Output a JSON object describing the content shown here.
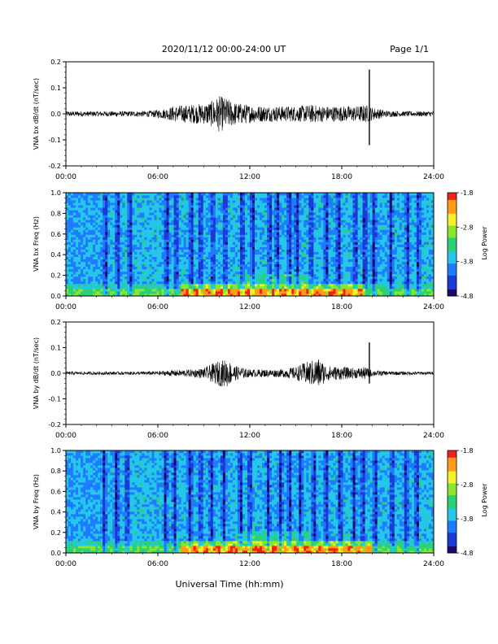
{
  "header": {
    "date_range": "2020/11/12  00:00-24:00 UT",
    "page": "Page 1/1"
  },
  "xlabel": "Universal Time (hh:mm)",
  "x_ticks": [
    "00:00",
    "06:00",
    "12:00",
    "18:00",
    "24:00"
  ],
  "colors": {
    "trace": "#000000",
    "colormap": [
      "#000000",
      "#1b0a6e",
      "#1c3ad6",
      "#1f7bff",
      "#24c7e8",
      "#2ad07a",
      "#8ae62c",
      "#f4f02a",
      "#ff9a1a",
      "#f0201a"
    ]
  },
  "chart_data": [
    {
      "type": "line",
      "id": "bx",
      "ylabel": "VNA bx dB/dt (nT/sec)",
      "ylim": [
        -0.2,
        0.2
      ],
      "xlim_hours": [
        0,
        24
      ],
      "y_ticks": [
        "0.2",
        "0.1",
        "0.0",
        "-0.1",
        "-0.2"
      ],
      "envelope": {
        "x_hours": [
          0,
          2,
          4,
          5.5,
          6.5,
          7,
          8,
          9,
          9.5,
          10,
          10.5,
          11,
          12,
          13,
          14,
          15,
          16,
          17,
          18,
          19,
          19.5,
          20,
          21,
          22,
          23,
          24
        ],
        "y_amplitude": [
          0.01,
          0.01,
          0.01,
          0.012,
          0.02,
          0.03,
          0.035,
          0.04,
          0.05,
          0.07,
          0.06,
          0.045,
          0.035,
          0.03,
          0.03,
          0.03,
          0.035,
          0.03,
          0.03,
          0.03,
          0.035,
          0.025,
          0.012,
          0.01,
          0.01,
          0.01
        ]
      },
      "spikes": [
        {
          "x_hours": 19.8,
          "y_max": 0.17,
          "y_min": -0.12
        }
      ]
    },
    {
      "type": "heatmap",
      "id": "bx-freq",
      "ylabel": "VNA bx Freq (Hz)",
      "ylim": [
        0.0,
        1.0
      ],
      "y_ticks": [
        "1.0",
        "0.8",
        "0.6",
        "0.4",
        "0.2",
        "0.0"
      ],
      "colorbar": {
        "label": "Log Power",
        "ticks": [
          "-1.8",
          "-2.8",
          "-3.8",
          "-4.8"
        ],
        "range": [
          -4.8,
          -1.8
        ]
      },
      "dark_band_hours": [
        2.6,
        3.4,
        4.2,
        6.6,
        7.2,
        8.2,
        8.8,
        9.6,
        10.4,
        11.5,
        12.2,
        13.3,
        13.8,
        14.6,
        15.1,
        16.0,
        17.0,
        17.8,
        18.9,
        19.5,
        20.1,
        21.2,
        22.3,
        23.0
      ],
      "low_freq_enhancement_hours": [
        7.5,
        19.5
      ]
    },
    {
      "type": "line",
      "id": "by",
      "ylabel": "VNA by dB/dt (nT/sec)",
      "ylim": [
        -0.2,
        0.2
      ],
      "xlim_hours": [
        0,
        24
      ],
      "y_ticks": [
        "0.2",
        "0.1",
        "0.0",
        "-0.1",
        "-0.2"
      ],
      "envelope": {
        "x_hours": [
          0,
          2,
          4,
          6,
          7,
          8,
          9,
          9.5,
          10,
          10.5,
          11,
          12,
          13,
          14,
          15,
          15.5,
          16,
          16.5,
          17,
          18,
          19,
          19.5,
          20,
          21,
          22,
          23,
          24
        ],
        "y_amplitude": [
          0.006,
          0.006,
          0.006,
          0.008,
          0.012,
          0.014,
          0.02,
          0.035,
          0.05,
          0.055,
          0.03,
          0.015,
          0.015,
          0.015,
          0.025,
          0.04,
          0.05,
          0.06,
          0.03,
          0.025,
          0.02,
          0.025,
          0.012,
          0.008,
          0.007,
          0.006,
          0.006
        ]
      },
      "spikes": [
        {
          "x_hours": 19.8,
          "y_max": 0.12,
          "y_min": -0.04
        }
      ]
    },
    {
      "type": "heatmap",
      "id": "by-freq",
      "ylabel": "VNA by Freq (Hz)",
      "ylim": [
        0.0,
        1.0
      ],
      "y_ticks": [
        "1.0",
        "0.8",
        "0.6",
        "0.4",
        "0.2",
        "0.0"
      ],
      "colorbar": {
        "label": "Log Power",
        "ticks": [
          "-1.8",
          "-2.8",
          "-3.8",
          "-4.8"
        ],
        "range": [
          -4.8,
          -1.8
        ]
      },
      "dark_band_hours": [
        2.5,
        3.3,
        4.0,
        6.5,
        7.1,
        8.1,
        8.8,
        9.5,
        10.3,
        11.4,
        12.0,
        13.2,
        14.0,
        14.6,
        15.3,
        16.2,
        17.0,
        17.9,
        18.8,
        19.4,
        20.2,
        21.3,
        22.2,
        22.9
      ],
      "low_freq_enhancement_hours": [
        7.5,
        20.0
      ]
    }
  ]
}
